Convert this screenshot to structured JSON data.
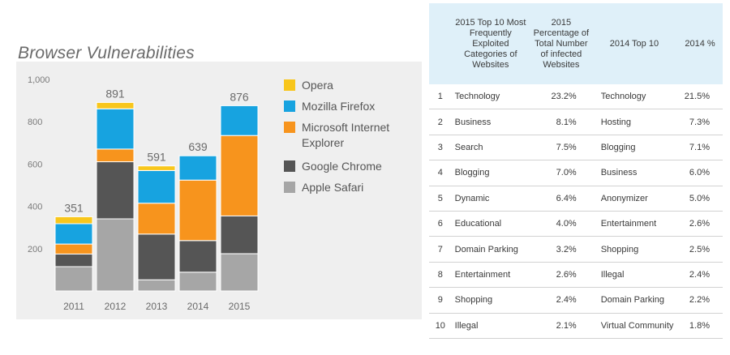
{
  "chart_data": {
    "type": "bar",
    "stacked": true,
    "title": "Browser Vulnerabilities",
    "categories": [
      "2011",
      "2012",
      "2013",
      "2014",
      "2015"
    ],
    "totals": [
      "351",
      "891",
      "591",
      "639",
      "876"
    ],
    "ylim": [
      0,
      1000
    ],
    "yticks": [
      "200",
      "400",
      "600",
      "800",
      "1,000"
    ],
    "grid": false,
    "legend_position": "right",
    "series": [
      {
        "name": "Apple Safari",
        "color": "#a6a6a6",
        "values": [
          115,
          341,
          53,
          89,
          176
        ]
      },
      {
        "name": "Google Chrome",
        "color": "#555555",
        "values": [
          60,
          270,
          216,
          149,
          179
        ]
      },
      {
        "name": "Microsoft Internet Explorer",
        "color": "#f7941d",
        "values": [
          47,
          60,
          146,
          286,
          380
        ]
      },
      {
        "name": "Mozilla Firefox",
        "color": "#17a3e0",
        "values": [
          96,
          190,
          154,
          115,
          141
        ]
      },
      {
        "name": "Opera",
        "color": "#f8c61b",
        "values": [
          33,
          30,
          22,
          0,
          0
        ]
      }
    ],
    "legend_order": [
      {
        "name": "Opera",
        "color": "#f8c61b"
      },
      {
        "name": "Mozilla Firefox",
        "color": "#17a3e0"
      },
      {
        "name": "Microsoft Internet\nExplorer",
        "color": "#f7941d"
      },
      {
        "name": "Google Chrome",
        "color": "#555555"
      },
      {
        "name": "Apple Safari",
        "color": "#a6a6a6"
      }
    ]
  },
  "table": {
    "headers": {
      "col1": "",
      "col2": "2015 Top 10 Most Frequently Exploited Categories of Websites",
      "col3": "2015 Percentage of Total Number of infected Websites",
      "col4": "2014 Top 10",
      "col5": "2014 %"
    },
    "rows": [
      {
        "rank": "1",
        "cat2015": "Technology",
        "pct2015": "23.2%",
        "cat2014": "Technology",
        "pct2014": "21.5%"
      },
      {
        "rank": "2",
        "cat2015": "Business",
        "pct2015": "8.1%",
        "cat2014": "Hosting",
        "pct2014": "7.3%"
      },
      {
        "rank": "3",
        "cat2015": "Search",
        "pct2015": "7.5%",
        "cat2014": "Blogging",
        "pct2014": "7.1%"
      },
      {
        "rank": "4",
        "cat2015": "Blogging",
        "pct2015": "7.0%",
        "cat2014": "Business",
        "pct2014": "6.0%"
      },
      {
        "rank": "5",
        "cat2015": "Dynamic",
        "pct2015": "6.4%",
        "cat2014": "Anonymizer",
        "pct2014": "5.0%"
      },
      {
        "rank": "6",
        "cat2015": "Educational",
        "pct2015": "4.0%",
        "cat2014": "Entertainment",
        "pct2014": "2.6%"
      },
      {
        "rank": "7",
        "cat2015": "Domain Parking",
        "pct2015": "3.2%",
        "cat2014": "Shopping",
        "pct2014": "2.5%"
      },
      {
        "rank": "8",
        "cat2015": "Entertainment",
        "pct2015": "2.6%",
        "cat2014": "Illegal",
        "pct2014": "2.4%"
      },
      {
        "rank": "9",
        "cat2015": "Shopping",
        "pct2015": "2.4%",
        "cat2014": "Domain Parking",
        "pct2014": "2.2%"
      },
      {
        "rank": "10",
        "cat2015": "Illegal",
        "pct2015": "2.1%",
        "cat2014": "Virtual Community",
        "pct2014": "1.8%"
      }
    ]
  }
}
